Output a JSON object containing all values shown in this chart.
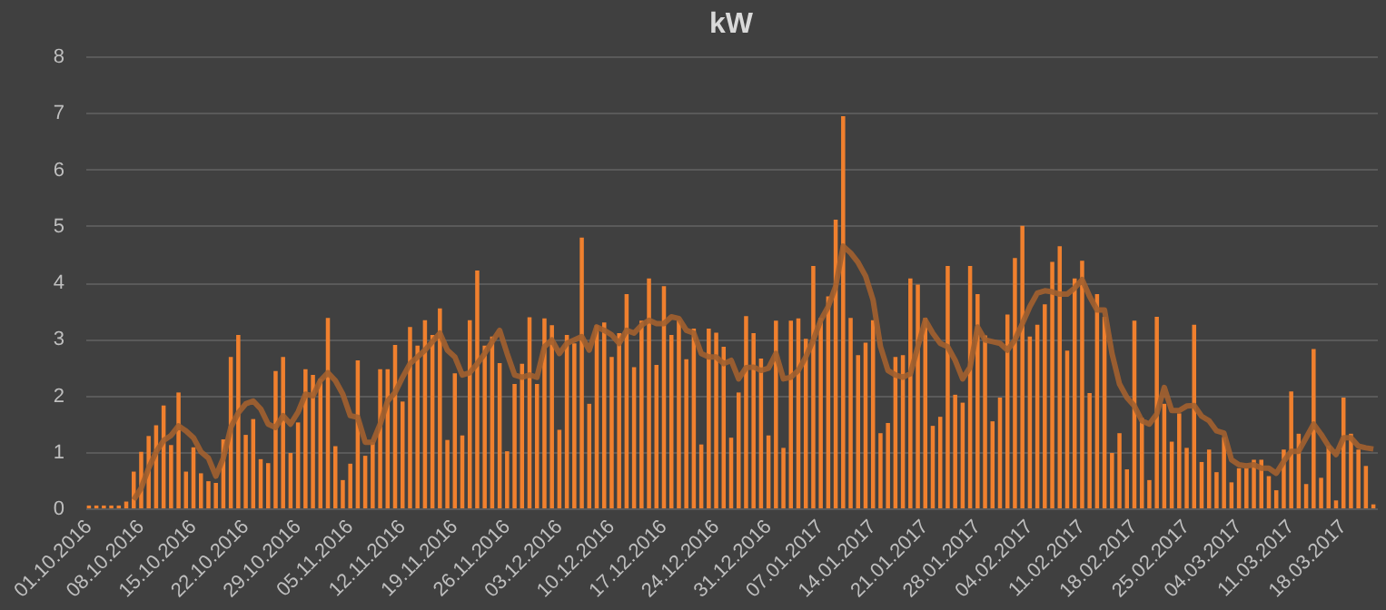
{
  "chart_data": {
    "type": "bar",
    "title": "kW",
    "categories": [
      "01.10.2016",
      null,
      null,
      null,
      null,
      null,
      null,
      "08.10.2016",
      null,
      null,
      null,
      null,
      null,
      null,
      "15.10.2016",
      null,
      null,
      null,
      null,
      null,
      null,
      "22.10.2016",
      null,
      null,
      null,
      null,
      null,
      null,
      "29.10.2016",
      null,
      null,
      null,
      null,
      null,
      null,
      "05.11.2016",
      null,
      null,
      null,
      null,
      null,
      null,
      "12.11.2016",
      null,
      null,
      null,
      null,
      null,
      null,
      "19.11.2016",
      null,
      null,
      null,
      null,
      null,
      null,
      "26.11.2016",
      null,
      null,
      null,
      null,
      null,
      null,
      "03.12.2016",
      null,
      null,
      null,
      null,
      null,
      null,
      "10.12.2016",
      null,
      null,
      null,
      null,
      null,
      null,
      "17.12.2016",
      null,
      null,
      null,
      null,
      null,
      null,
      "24.12.2016",
      null,
      null,
      null,
      null,
      null,
      null,
      "31.12.2016",
      null,
      null,
      null,
      null,
      null,
      null,
      "07.01.2017",
      null,
      null,
      null,
      null,
      null,
      null,
      "14.01.2017",
      null,
      null,
      null,
      null,
      null,
      null,
      "21.01.2017",
      null,
      null,
      null,
      null,
      null,
      null,
      "28.01.2017",
      null,
      null,
      null,
      null,
      null,
      null,
      "04.02.2017",
      null,
      null,
      null,
      null,
      null,
      null,
      "11.02.2017",
      null,
      null,
      null,
      null,
      null,
      null,
      "18.02.2017",
      null,
      null,
      null,
      null,
      null,
      null,
      "25.02.2017",
      null,
      null,
      null,
      null,
      null,
      null,
      "04.03.2017",
      null,
      null,
      null,
      null,
      null,
      null,
      "11.03.2017",
      null,
      null,
      null,
      null,
      null,
      null,
      "18.03.2017",
      null,
      null,
      null,
      null
    ],
    "series": [
      {
        "color": "#f0802e",
        "values": [
          0.05,
          0.05,
          0.05,
          0.05,
          0.05,
          0.12,
          0.65,
          1.0,
          1.28,
          1.47,
          1.82,
          1.12,
          2.05,
          0.65,
          1.08,
          0.62,
          0.48,
          0.45,
          1.22,
          2.68,
          3.07,
          1.3,
          1.58,
          0.87,
          0.8,
          2.43,
          2.68,
          0.98,
          1.52,
          2.46,
          2.36,
          2.29,
          3.37,
          1.1,
          0.5,
          0.79,
          2.62,
          0.93,
          1.17,
          2.46,
          2.46,
          2.89,
          1.89,
          3.21,
          2.88,
          3.33,
          3.07,
          3.54,
          1.21,
          2.39,
          1.29,
          3.33,
          4.21,
          2.88,
          3.04,
          2.57,
          1.01,
          2.2,
          2.56,
          3.38,
          2.2,
          3.36,
          3.24,
          1.39,
          3.07,
          2.92,
          4.79,
          1.85,
          3.24,
          3.29,
          2.68,
          3.1,
          3.79,
          2.5,
          3.32,
          4.07,
          2.54,
          3.93,
          3.07,
          3.33,
          2.64,
          3.18,
          1.13,
          3.18,
          3.11,
          2.86,
          1.25,
          2.05,
          3.4,
          3.1,
          2.65,
          1.29,
          3.32,
          1.07,
          3.32,
          3.36,
          3.0,
          4.29,
          3.37,
          3.75,
          5.11,
          6.94,
          3.37,
          2.71,
          2.93,
          3.33,
          1.33,
          1.51,
          2.68,
          2.71,
          4.07,
          3.96,
          3.37,
          1.46,
          1.62,
          4.29,
          2.01,
          1.87,
          4.29,
          3.79,
          3.06,
          1.54,
          1.96,
          3.43,
          4.43,
          5.0,
          3.04,
          3.25,
          3.61,
          4.36,
          4.64,
          2.79,
          4.07,
          4.38,
          2.04,
          3.79,
          3.39,
          0.98,
          1.33,
          0.69,
          3.32,
          1.6,
          0.5,
          3.39,
          1.85,
          1.18,
          1.68,
          1.07,
          3.25,
          0.82,
          1.04,
          0.64,
          1.26,
          0.46,
          0.71,
          0.71,
          0.86,
          0.86,
          0.57,
          0.32,
          1.04,
          2.07,
          1.32,
          0.43,
          2.82,
          0.54,
          1.11,
          0.14,
          1.96,
          1.32,
          1.04,
          0.75,
          0.07
        ]
      },
      {
        "type": "line",
        "color": "#a3602f",
        "values": [
          null,
          null,
          null,
          null,
          null,
          null,
          0.15,
          0.36,
          0.71,
          1.0,
          1.2,
          1.29,
          1.46,
          1.37,
          1.25,
          1.0,
          0.89,
          0.57,
          0.89,
          1.43,
          1.69,
          1.85,
          1.9,
          1.76,
          1.49,
          1.43,
          1.64,
          1.49,
          1.7,
          2.02,
          1.99,
          2.26,
          2.4,
          2.26,
          2.02,
          1.64,
          1.61,
          1.17,
          1.17,
          1.49,
          1.9,
          2.05,
          2.32,
          2.56,
          2.68,
          2.8,
          2.95,
          3.1,
          2.8,
          2.68,
          2.36,
          2.4,
          2.56,
          2.74,
          2.95,
          3.15,
          2.74,
          2.36,
          2.32,
          2.36,
          2.32,
          2.86,
          2.98,
          2.74,
          2.92,
          2.98,
          3.04,
          2.8,
          3.21,
          3.15,
          3.07,
          2.92,
          3.15,
          3.1,
          3.24,
          3.33,
          3.27,
          3.27,
          3.39,
          3.36,
          3.15,
          3.1,
          2.74,
          2.68,
          2.68,
          2.56,
          2.62,
          2.29,
          2.49,
          2.5,
          2.44,
          2.48,
          2.74,
          2.29,
          2.32,
          2.44,
          2.68,
          2.98,
          3.33,
          3.57,
          3.93,
          4.64,
          4.52,
          4.35,
          4.11,
          3.69,
          2.86,
          2.44,
          2.36,
          2.32,
          2.38,
          2.86,
          3.33,
          3.1,
          2.92,
          2.86,
          2.62,
          2.29,
          2.5,
          3.21,
          2.98,
          2.95,
          2.92,
          2.8,
          2.98,
          3.27,
          3.57,
          3.81,
          3.85,
          3.83,
          3.79,
          3.79,
          3.9,
          4.05,
          3.75,
          3.51,
          3.51,
          2.74,
          2.2,
          1.96,
          1.81,
          1.55,
          1.49,
          1.67,
          2.14,
          1.73,
          1.73,
          1.81,
          1.82,
          1.63,
          1.55,
          1.37,
          1.33,
          0.86,
          0.77,
          0.75,
          0.77,
          0.71,
          0.71,
          0.62,
          0.83,
          1.01,
          1.01,
          1.25,
          1.49,
          1.31,
          1.1,
          0.95,
          1.25,
          1.25,
          1.1,
          1.07,
          1.05
        ]
      }
    ],
    "ylim": [
      0,
      8
    ],
    "yticks": [
      0,
      1,
      2,
      3,
      4,
      5,
      6,
      7,
      8
    ],
    "grid": "y",
    "marker": "none"
  }
}
